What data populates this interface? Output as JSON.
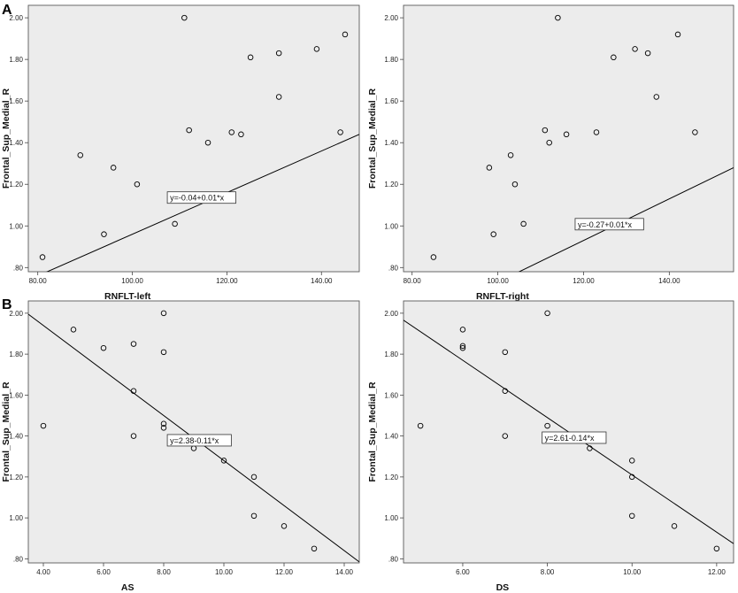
{
  "figure": {
    "panel_letters": [
      "A",
      "B"
    ]
  },
  "chart_data": [
    {
      "type": "scatter",
      "panel": "A",
      "xlabel": "RNFLT-left",
      "ylabel": "Frontal_Sup_Medial_R",
      "xlim": [
        78,
        148
      ],
      "ylim": [
        0.78,
        2.06
      ],
      "xticks": [
        80,
        100,
        120,
        140
      ],
      "yticks": [
        0.8,
        1.0,
        1.2,
        1.4,
        1.6,
        1.8,
        2.0
      ],
      "grid": false,
      "points": [
        [
          81,
          0.85
        ],
        [
          89,
          1.34
        ],
        [
          94,
          0.96
        ],
        [
          96,
          1.28
        ],
        [
          101,
          1.2
        ],
        [
          109,
          1.01
        ],
        [
          111,
          2.0
        ],
        [
          112,
          1.46
        ],
        [
          116,
          1.4
        ],
        [
          121,
          1.45
        ],
        [
          123,
          1.44
        ],
        [
          125,
          1.81
        ],
        [
          131,
          1.83
        ],
        [
          131,
          1.62
        ],
        [
          139,
          1.85
        ],
        [
          144,
          1.45
        ],
        [
          145,
          1.92
        ]
      ],
      "fit": {
        "intercept": -0.04,
        "slope": 0.01,
        "label": "y=-0.04+0.01*x"
      }
    },
    {
      "type": "scatter",
      "panel": "",
      "xlabel": "RNFLT-right",
      "ylabel": "Frontal_Sup_Medial_R",
      "xlim": [
        78,
        155
      ],
      "ylim": [
        0.78,
        2.06
      ],
      "xticks": [
        80,
        100,
        120,
        140
      ],
      "yticks": [
        0.8,
        1.0,
        1.2,
        1.4,
        1.6,
        1.8,
        2.0
      ],
      "grid": false,
      "points": [
        [
          85,
          0.85
        ],
        [
          98,
          1.28
        ],
        [
          99,
          0.96
        ],
        [
          103,
          1.34
        ],
        [
          104,
          1.2
        ],
        [
          106,
          1.01
        ],
        [
          111,
          1.46
        ],
        [
          112,
          1.4
        ],
        [
          114,
          2.0
        ],
        [
          116,
          1.44
        ],
        [
          123,
          1.45
        ],
        [
          127,
          1.81
        ],
        [
          132,
          1.85
        ],
        [
          135,
          1.83
        ],
        [
          137,
          1.62
        ],
        [
          142,
          1.92
        ],
        [
          146,
          1.45
        ]
      ],
      "fit": {
        "intercept": -0.27,
        "slope": 0.01,
        "label": "y=-0.27+0.01*x"
      }
    },
    {
      "type": "scatter",
      "panel": "B",
      "xlabel": "AS",
      "ylabel": "Frontal_Sup_Medial_R",
      "xlim": [
        3.5,
        14.5
      ],
      "ylim": [
        0.78,
        2.06
      ],
      "xticks": [
        4,
        6,
        8,
        10,
        12,
        14
      ],
      "yticks": [
        0.8,
        1.0,
        1.2,
        1.4,
        1.6,
        1.8,
        2.0
      ],
      "grid": false,
      "points": [
        [
          4,
          1.45
        ],
        [
          5,
          1.92
        ],
        [
          6,
          1.83
        ],
        [
          7,
          1.85
        ],
        [
          7,
          1.62
        ],
        [
          7,
          1.4
        ],
        [
          8,
          2.0
        ],
        [
          8,
          1.81
        ],
        [
          8,
          1.46
        ],
        [
          8,
          1.44
        ],
        [
          9,
          1.34
        ],
        [
          10,
          1.28
        ],
        [
          11,
          1.2
        ],
        [
          11,
          1.01
        ],
        [
          12,
          0.96
        ],
        [
          13,
          0.85
        ]
      ],
      "fit": {
        "intercept": 2.38,
        "slope": -0.11,
        "label": "y=2.38-0.11*x"
      }
    },
    {
      "type": "scatter",
      "panel": "",
      "xlabel": "DS",
      "ylabel": "Frontal_Sup_Medial_R",
      "xlim": [
        4.6,
        12.4
      ],
      "ylim": [
        0.78,
        2.06
      ],
      "xticks": [
        6,
        8,
        10,
        12
      ],
      "yticks": [
        0.8,
        1.0,
        1.2,
        1.4,
        1.6,
        1.8,
        2.0
      ],
      "grid": false,
      "points": [
        [
          5,
          1.45
        ],
        [
          6,
          1.92
        ],
        [
          6,
          1.84
        ],
        [
          6,
          1.83
        ],
        [
          7,
          1.81
        ],
        [
          7,
          1.62
        ],
        [
          7,
          1.4
        ],
        [
          8,
          2.0
        ],
        [
          8,
          1.45
        ],
        [
          9,
          1.34
        ],
        [
          10,
          1.28
        ],
        [
          10,
          1.2
        ],
        [
          10,
          1.01
        ],
        [
          11,
          0.96
        ],
        [
          12,
          0.85
        ]
      ],
      "fit": {
        "intercept": 2.61,
        "slope": -0.14,
        "label": "y=2.61-0.14*x"
      }
    }
  ]
}
